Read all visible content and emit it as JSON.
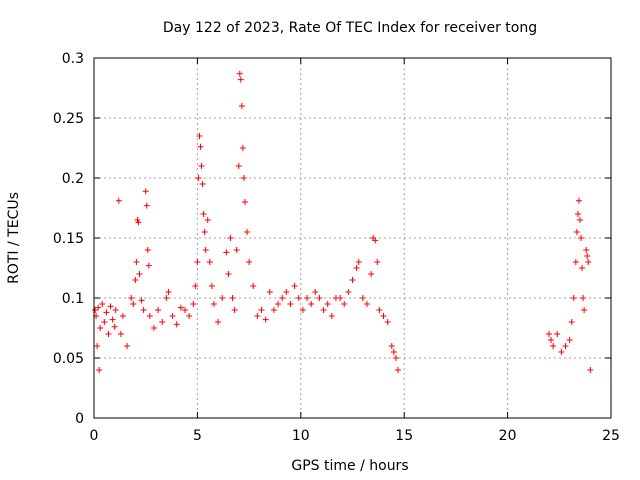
{
  "chart_data": {
    "type": "scatter",
    "title": "Day 122 of 2023, Rate Of TEC Index for receiver tong",
    "xlabel": "GPS time / hours",
    "ylabel": "ROTI / TECUs",
    "xlim": [
      0,
      25
    ],
    "ylim": [
      0,
      0.3
    ],
    "xticks": [
      "0",
      "5",
      "10",
      "15",
      "20",
      "25"
    ],
    "yticks": [
      "0",
      "0.05",
      "0.1",
      "0.15",
      "0.2",
      "0.25",
      "0.3"
    ],
    "grid": true,
    "marker": "+",
    "color": "#ff0000",
    "series": [
      {
        "points": [
          [
            0.05,
            0.09
          ],
          [
            0.1,
            0.085
          ],
          [
            0.15,
            0.06
          ],
          [
            0.2,
            0.092
          ],
          [
            0.25,
            0.04
          ],
          [
            0.3,
            0.075
          ],
          [
            0.4,
            0.095
          ],
          [
            0.5,
            0.08
          ],
          [
            0.6,
            0.088
          ],
          [
            0.7,
            0.07
          ],
          [
            0.8,
            0.093
          ],
          [
            0.9,
            0.082
          ],
          [
            1.0,
            0.076
          ],
          [
            1.05,
            0.09
          ],
          [
            1.2,
            0.181
          ],
          [
            1.3,
            0.07
          ],
          [
            1.4,
            0.085
          ],
          [
            1.6,
            0.06
          ],
          [
            1.8,
            0.1
          ],
          [
            1.9,
            0.095
          ],
          [
            2.0,
            0.115
          ],
          [
            2.05,
            0.13
          ],
          [
            2.1,
            0.165
          ],
          [
            2.15,
            0.163
          ],
          [
            2.2,
            0.12
          ],
          [
            2.3,
            0.098
          ],
          [
            2.4,
            0.09
          ],
          [
            2.5,
            0.189
          ],
          [
            2.55,
            0.177
          ],
          [
            2.6,
            0.14
          ],
          [
            2.65,
            0.127
          ],
          [
            2.7,
            0.085
          ],
          [
            2.9,
            0.075
          ],
          [
            3.1,
            0.09
          ],
          [
            3.3,
            0.08
          ],
          [
            3.5,
            0.1
          ],
          [
            3.6,
            0.105
          ],
          [
            3.8,
            0.085
          ],
          [
            4.0,
            0.078
          ],
          [
            4.2,
            0.092
          ],
          [
            4.4,
            0.09
          ],
          [
            4.6,
            0.085
          ],
          [
            4.8,
            0.095
          ],
          [
            4.9,
            0.11
          ],
          [
            5.0,
            0.13
          ],
          [
            5.05,
            0.2
          ],
          [
            5.1,
            0.235
          ],
          [
            5.15,
            0.226
          ],
          [
            5.2,
            0.21
          ],
          [
            5.25,
            0.195
          ],
          [
            5.3,
            0.17
          ],
          [
            5.35,
            0.155
          ],
          [
            5.4,
            0.14
          ],
          [
            5.5,
            0.165
          ],
          [
            5.6,
            0.13
          ],
          [
            5.7,
            0.11
          ],
          [
            5.8,
            0.095
          ],
          [
            6.0,
            0.08
          ],
          [
            6.2,
            0.1
          ],
          [
            6.4,
            0.138
          ],
          [
            6.5,
            0.12
          ],
          [
            6.6,
            0.15
          ],
          [
            6.7,
            0.1
          ],
          [
            6.8,
            0.09
          ],
          [
            6.9,
            0.14
          ],
          [
            7.0,
            0.21
          ],
          [
            7.05,
            0.287
          ],
          [
            7.1,
            0.282
          ],
          [
            7.15,
            0.26
          ],
          [
            7.2,
            0.225
          ],
          [
            7.25,
            0.2
          ],
          [
            7.3,
            0.18
          ],
          [
            7.4,
            0.155
          ],
          [
            7.5,
            0.13
          ],
          [
            7.7,
            0.11
          ],
          [
            7.9,
            0.085
          ],
          [
            8.1,
            0.09
          ],
          [
            8.3,
            0.082
          ],
          [
            8.5,
            0.105
          ],
          [
            8.7,
            0.09
          ],
          [
            8.9,
            0.095
          ],
          [
            9.1,
            0.1
          ],
          [
            9.3,
            0.105
          ],
          [
            9.5,
            0.095
          ],
          [
            9.7,
            0.11
          ],
          [
            9.9,
            0.1
          ],
          [
            10.1,
            0.09
          ],
          [
            10.3,
            0.1
          ],
          [
            10.5,
            0.095
          ],
          [
            10.7,
            0.105
          ],
          [
            10.9,
            0.1
          ],
          [
            11.1,
            0.09
          ],
          [
            11.3,
            0.095
          ],
          [
            11.5,
            0.085
          ],
          [
            11.7,
            0.1
          ],
          [
            11.9,
            0.1
          ],
          [
            12.1,
            0.095
          ],
          [
            12.3,
            0.105
          ],
          [
            12.5,
            0.115
          ],
          [
            12.7,
            0.125
          ],
          [
            12.8,
            0.13
          ],
          [
            13.0,
            0.1
          ],
          [
            13.2,
            0.095
          ],
          [
            13.4,
            0.12
          ],
          [
            13.5,
            0.15
          ],
          [
            13.6,
            0.148
          ],
          [
            13.7,
            0.13
          ],
          [
            13.8,
            0.09
          ],
          [
            14.0,
            0.085
          ],
          [
            14.2,
            0.08
          ],
          [
            14.4,
            0.06
          ],
          [
            14.5,
            0.055
          ],
          [
            14.6,
            0.05
          ],
          [
            14.7,
            0.04
          ],
          [
            22.0,
            0.07
          ],
          [
            22.1,
            0.065
          ],
          [
            22.2,
            0.06
          ],
          [
            22.4,
            0.07
          ],
          [
            22.6,
            0.055
          ],
          [
            22.8,
            0.06
          ],
          [
            23.0,
            0.065
          ],
          [
            23.1,
            0.08
          ],
          [
            23.2,
            0.1
          ],
          [
            23.3,
            0.13
          ],
          [
            23.35,
            0.155
          ],
          [
            23.4,
            0.17
          ],
          [
            23.45,
            0.181
          ],
          [
            23.5,
            0.165
          ],
          [
            23.55,
            0.15
          ],
          [
            23.6,
            0.125
          ],
          [
            23.65,
            0.1
          ],
          [
            23.7,
            0.09
          ],
          [
            23.8,
            0.14
          ],
          [
            23.85,
            0.135
          ],
          [
            23.9,
            0.13
          ],
          [
            24.0,
            0.04
          ]
        ]
      }
    ]
  }
}
